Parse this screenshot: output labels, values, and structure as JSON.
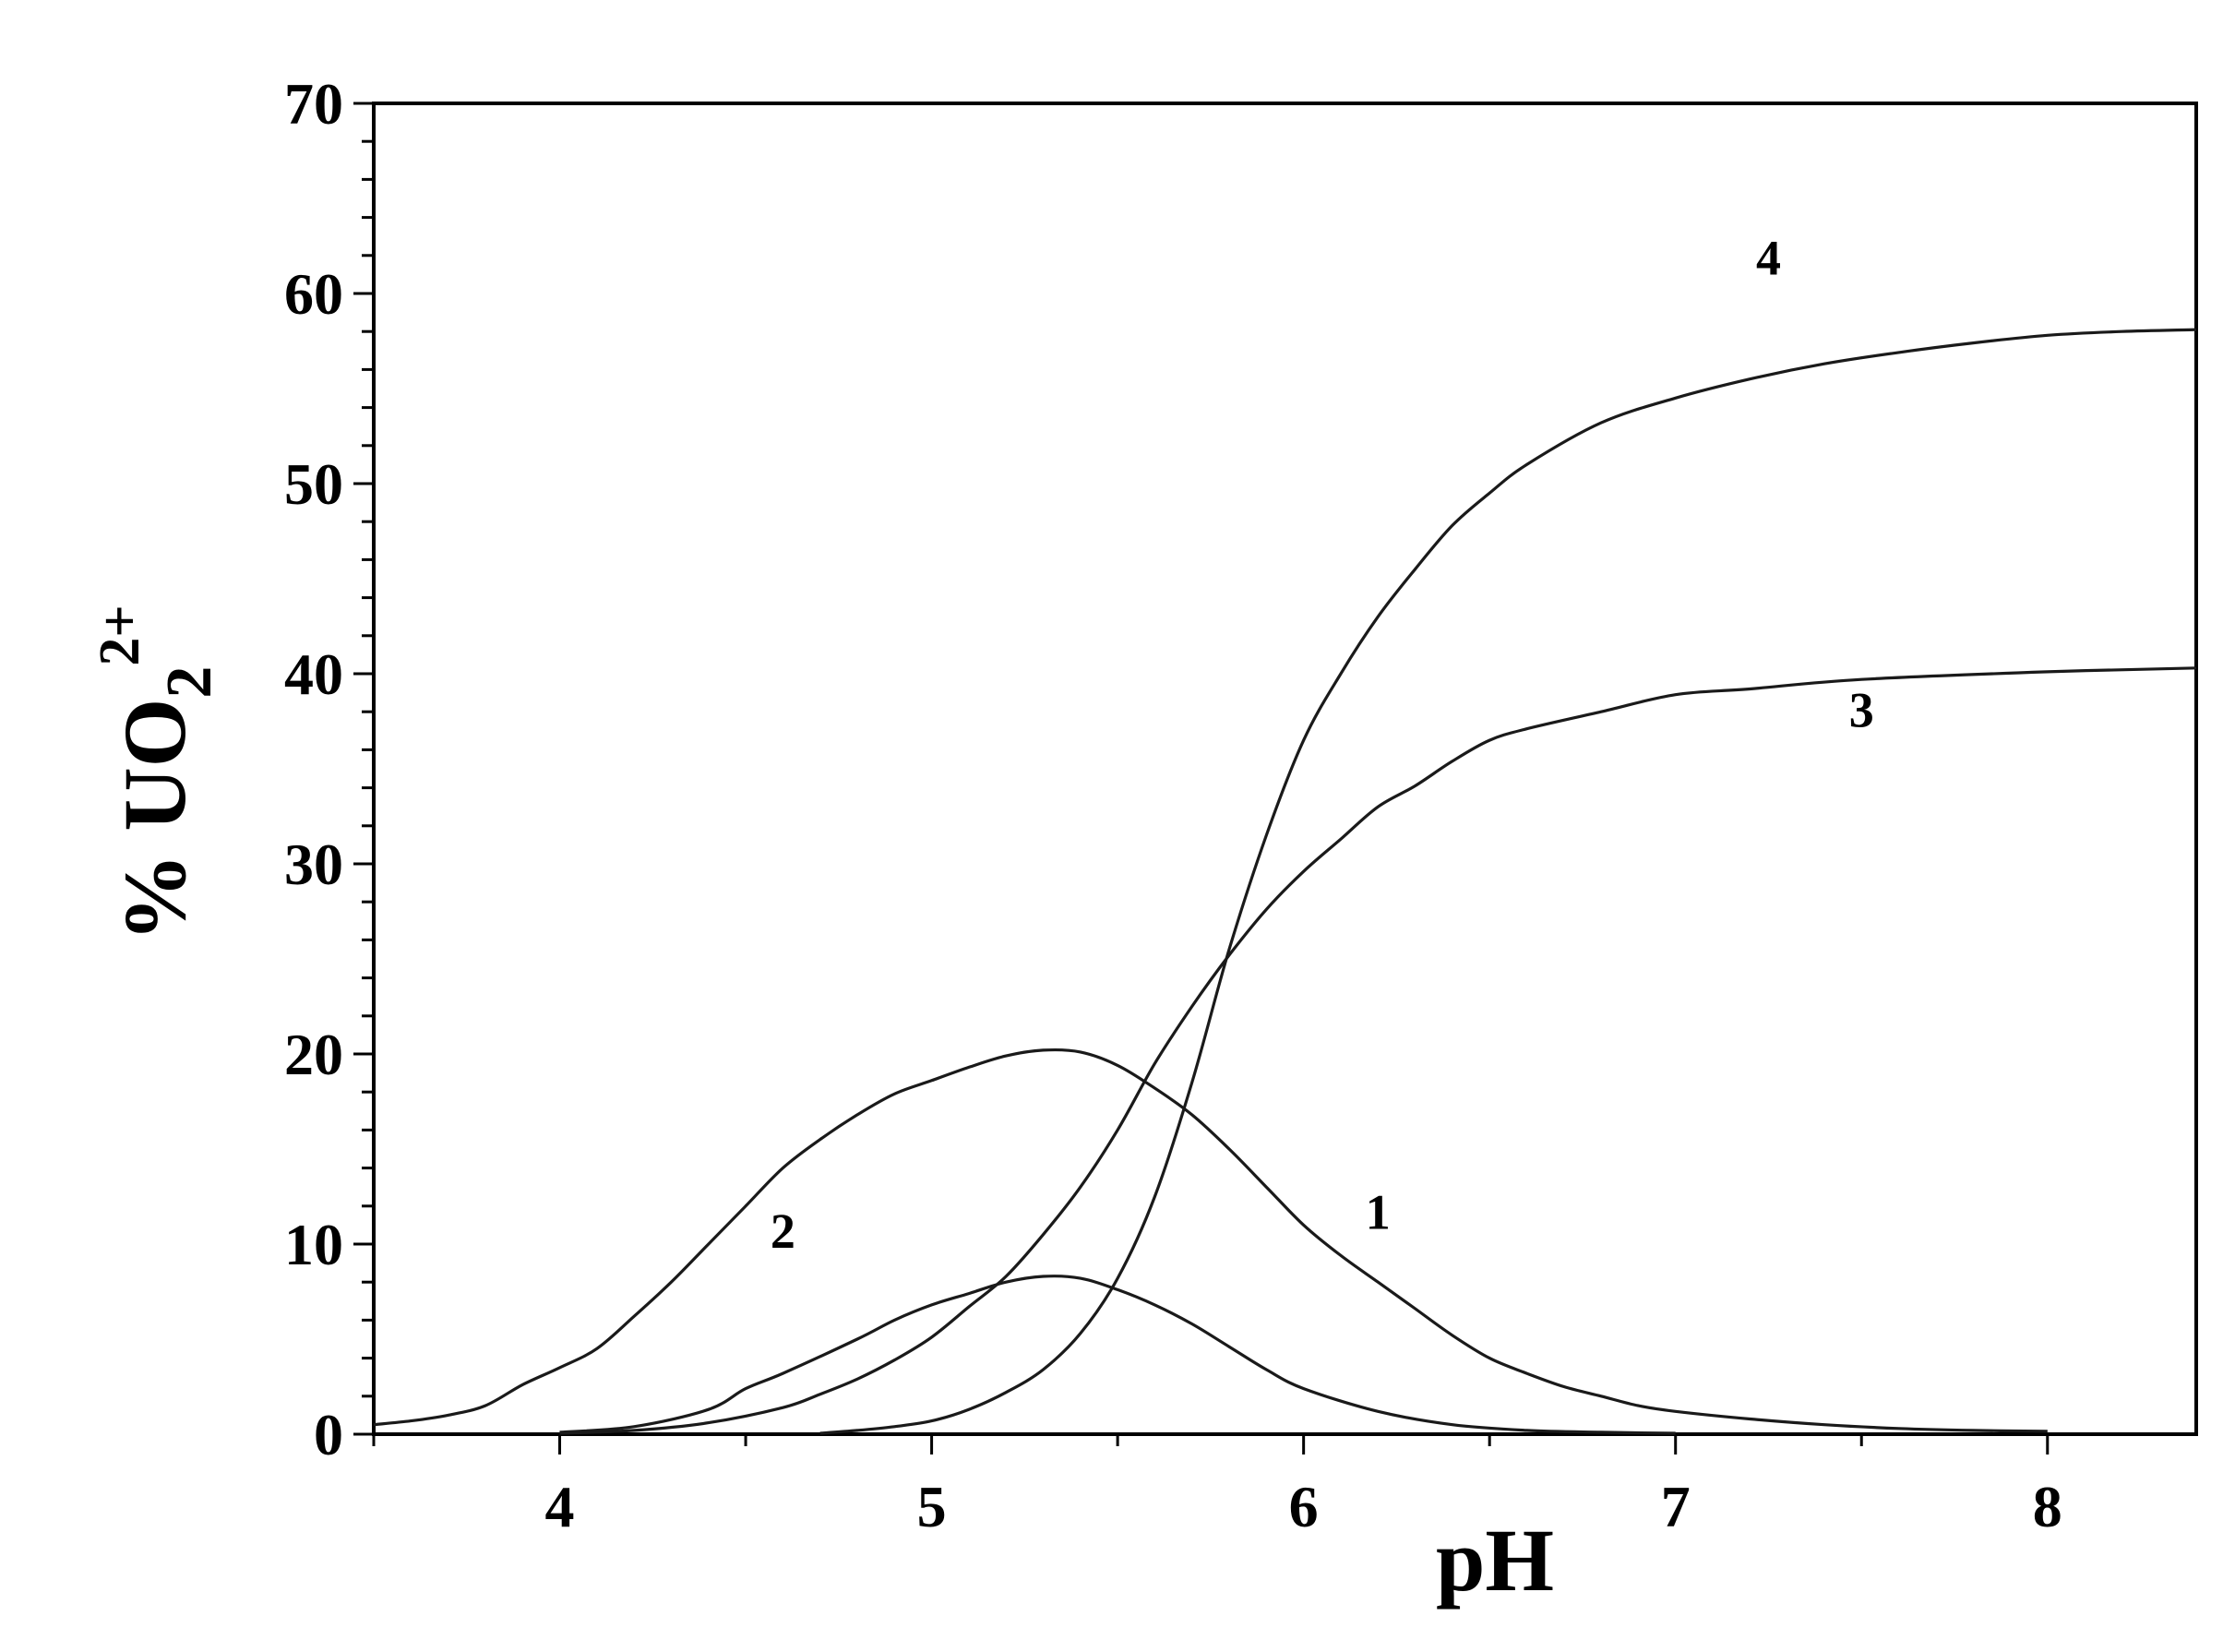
{
  "chart_data": {
    "type": "line",
    "title": "",
    "xlabel": "pH",
    "ylabel": {
      "prefix": "% UO",
      "subscript": "2",
      "superscript": "2+"
    },
    "xlim": [
      3.5,
      8.4
    ],
    "ylim": [
      0,
      70
    ],
    "x_ticks": [
      4,
      5,
      6,
      7,
      8
    ],
    "y_ticks": [
      0,
      10,
      20,
      30,
      40,
      50,
      60,
      70
    ],
    "grid": false,
    "legend": "none",
    "series": [
      {
        "name": "1",
        "label_pos": [
          6.2,
          10.8
        ],
        "points": [
          [
            4.0,
            0.1
          ],
          [
            4.2,
            0.4
          ],
          [
            4.4,
            1.3
          ],
          [
            4.5,
            2.4
          ],
          [
            4.6,
            3.2
          ],
          [
            4.8,
            5.0
          ],
          [
            4.9,
            6.0
          ],
          [
            5.0,
            6.8
          ],
          [
            5.1,
            7.4
          ],
          [
            5.2,
            8.0
          ],
          [
            5.3,
            8.3
          ],
          [
            5.4,
            8.2
          ],
          [
            5.5,
            7.6
          ],
          [
            5.6,
            6.8
          ],
          [
            5.7,
            5.8
          ],
          [
            5.8,
            4.6
          ],
          [
            5.9,
            3.4
          ],
          [
            6.0,
            2.4
          ],
          [
            6.2,
            1.2
          ],
          [
            6.4,
            0.5
          ],
          [
            6.6,
            0.2
          ],
          [
            6.8,
            0.1
          ],
          [
            7.0,
            0.05
          ]
        ]
      },
      {
        "name": "2",
        "label_pos": [
          4.6,
          9.8
        ],
        "points": [
          [
            3.5,
            0.5
          ],
          [
            3.6,
            0.7
          ],
          [
            3.7,
            1.0
          ],
          [
            3.8,
            1.5
          ],
          [
            3.9,
            2.6
          ],
          [
            4.0,
            3.5
          ],
          [
            4.1,
            4.5
          ],
          [
            4.2,
            6.2
          ],
          [
            4.3,
            8.0
          ],
          [
            4.4,
            10.0
          ],
          [
            4.5,
            12.0
          ],
          [
            4.6,
            14.0
          ],
          [
            4.7,
            15.5
          ],
          [
            4.8,
            16.8
          ],
          [
            4.9,
            17.9
          ],
          [
            5.0,
            18.6
          ],
          [
            5.1,
            19.3
          ],
          [
            5.2,
            19.9
          ],
          [
            5.3,
            20.2
          ],
          [
            5.4,
            20.1
          ],
          [
            5.5,
            19.4
          ],
          [
            5.6,
            18.2
          ],
          [
            5.7,
            16.8
          ],
          [
            5.8,
            15.0
          ],
          [
            5.9,
            13.0
          ],
          [
            6.0,
            11.0
          ],
          [
            6.1,
            9.4
          ],
          [
            6.2,
            8.0
          ],
          [
            6.3,
            6.6
          ],
          [
            6.4,
            5.2
          ],
          [
            6.5,
            4.0
          ],
          [
            6.6,
            3.2
          ],
          [
            6.7,
            2.5
          ],
          [
            6.8,
            2.0
          ],
          [
            6.9,
            1.5
          ],
          [
            7.0,
            1.2
          ],
          [
            7.2,
            0.8
          ],
          [
            7.4,
            0.5
          ],
          [
            7.6,
            0.3
          ],
          [
            7.8,
            0.2
          ],
          [
            8.0,
            0.15
          ]
        ]
      },
      {
        "name": "3",
        "label_pos": [
          7.5,
          37.2
        ],
        "points": [
          [
            4.0,
            0.05
          ],
          [
            4.2,
            0.2
          ],
          [
            4.4,
            0.6
          ],
          [
            4.6,
            1.4
          ],
          [
            4.7,
            2.1
          ],
          [
            4.8,
            2.9
          ],
          [
            4.9,
            3.9
          ],
          [
            5.0,
            5.1
          ],
          [
            5.1,
            6.7
          ],
          [
            5.2,
            8.3
          ],
          [
            5.3,
            10.5
          ],
          [
            5.4,
            13.0
          ],
          [
            5.5,
            16.0
          ],
          [
            5.6,
            19.5
          ],
          [
            5.7,
            22.5
          ],
          [
            5.8,
            25.2
          ],
          [
            5.9,
            27.6
          ],
          [
            6.0,
            29.6
          ],
          [
            6.1,
            31.3
          ],
          [
            6.2,
            33.0
          ],
          [
            6.3,
            34.1
          ],
          [
            6.4,
            35.4
          ],
          [
            6.5,
            36.5
          ],
          [
            6.6,
            37.1
          ],
          [
            6.8,
            38.0
          ],
          [
            7.0,
            38.9
          ],
          [
            7.2,
            39.2
          ],
          [
            7.5,
            39.7
          ],
          [
            8.0,
            40.1
          ],
          [
            8.4,
            40.3
          ]
        ]
      },
      {
        "name": "4",
        "label_pos": [
          7.25,
          61.0
        ],
        "points": [
          [
            4.7,
            0.05
          ],
          [
            4.8,
            0.2
          ],
          [
            4.9,
            0.4
          ],
          [
            5.0,
            0.7
          ],
          [
            5.1,
            1.3
          ],
          [
            5.2,
            2.2
          ],
          [
            5.3,
            3.4
          ],
          [
            5.4,
            5.3
          ],
          [
            5.5,
            8.2
          ],
          [
            5.6,
            12.5
          ],
          [
            5.7,
            18.5
          ],
          [
            5.8,
            25.5
          ],
          [
            5.9,
            31.5
          ],
          [
            6.0,
            36.5
          ],
          [
            6.1,
            40.0
          ],
          [
            6.2,
            43.0
          ],
          [
            6.3,
            45.5
          ],
          [
            6.4,
            47.8
          ],
          [
            6.5,
            49.5
          ],
          [
            6.6,
            51.0
          ],
          [
            6.8,
            53.2
          ],
          [
            7.0,
            54.5
          ],
          [
            7.2,
            55.5
          ],
          [
            7.4,
            56.3
          ],
          [
            7.6,
            56.9
          ],
          [
            7.8,
            57.4
          ],
          [
            8.0,
            57.8
          ],
          [
            8.2,
            58.0
          ],
          [
            8.4,
            58.1
          ]
        ]
      }
    ]
  }
}
